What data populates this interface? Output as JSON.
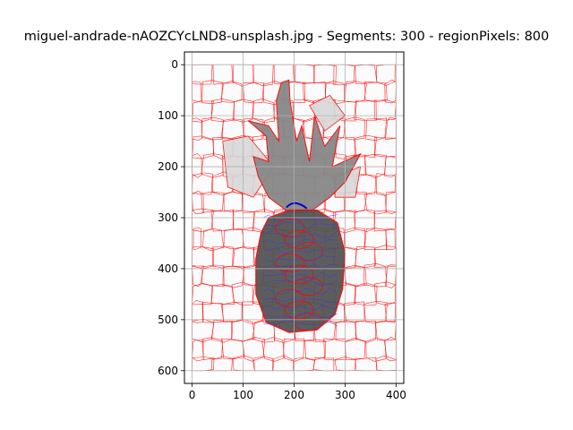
{
  "chart_data": {
    "type": "image-plot",
    "title": "miguel-andrade-nAOZCYcLND8-unsplash.jpg - Segments: 300 - regionPixels: 800",
    "xlabel": "",
    "ylabel": "",
    "xlim": [
      -15,
      415
    ],
    "ylim": [
      625,
      -25
    ],
    "x_ticks": [
      0,
      100,
      200,
      300,
      400
    ],
    "y_ticks": [
      0,
      100,
      200,
      300,
      400,
      500,
      600
    ],
    "image_extent": {
      "width": 400,
      "height": 600
    },
    "grid": true,
    "colors": {
      "segment_boundary": "#ff0000",
      "contour": "#3333ff",
      "fruit_fill": "#555555",
      "leaf_fill": "#888888",
      "background_fill": "#d8d8d8"
    }
  }
}
